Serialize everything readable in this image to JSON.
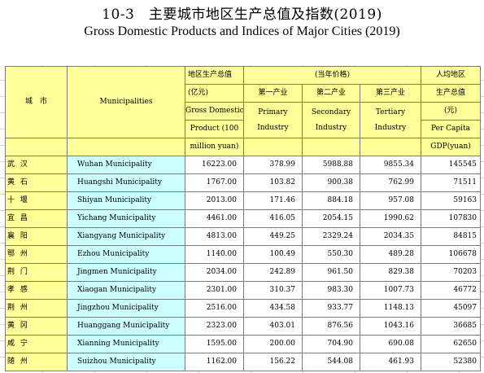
{
  "title": {
    "cn": "10-3　主要城市地区生产总值及指数(2019)",
    "en": "Gross Domestic Products and Indices of Major Cities (2019)"
  },
  "header": {
    "city_cn": "城　市",
    "city_en": "Municipalities",
    "gdp_cn": "地区生产总值",
    "gdp_unit_cn": "(亿元)",
    "gdp_en_1": "Gross Domestic",
    "gdp_en_2": "Product (100",
    "gdp_en_3": "million yuan)",
    "current_prices_cn": "(当年价格)",
    "primary_cn": "第一产业",
    "primary_en_1": "Primary",
    "primary_en_2": "Industry",
    "secondary_cn": "第二产业",
    "secondary_en_1": "Secondary",
    "secondary_en_2": "Industry",
    "tertiary_cn": "第三产业",
    "tertiary_en_1": "Tertiary",
    "tertiary_en_2": "Industry",
    "percap_cn_1": "人均地区",
    "percap_cn_2": "生产总值",
    "percap_unit_cn": "(元)",
    "percap_en_1": "Per Capita",
    "percap_en_2": "GDP(yuan)"
  },
  "rows": [
    {
      "cn": "武 汉",
      "en": "Wuhan Municipality",
      "gdp": "16223.00",
      "primary": "378.99",
      "secondary": "5988.88",
      "tertiary": "9855.34",
      "per_capita": "145545"
    },
    {
      "cn": "黄 石",
      "en": "Huangshi Municipality",
      "gdp": "1767.00",
      "primary": "103.82",
      "secondary": "900.38",
      "tertiary": "762.99",
      "per_capita": "71511"
    },
    {
      "cn": "十 堰",
      "en": "Shiyan Municipality",
      "gdp": "2013.00",
      "primary": "171.46",
      "secondary": "884.18",
      "tertiary": "957.08",
      "per_capita": "59163"
    },
    {
      "cn": "宜 昌",
      "en": "Yichang Municipality",
      "gdp": "4461.00",
      "primary": "416.05",
      "secondary": "2054.15",
      "tertiary": "1990.62",
      "per_capita": "107830"
    },
    {
      "cn": "襄 阳",
      "en": "Xiangyang Municipality",
      "gdp": "4813.00",
      "primary": "449.25",
      "secondary": "2329.24",
      "tertiary": "2034.35",
      "per_capita": "84815"
    },
    {
      "cn": "鄂 州",
      "en": "Ezhou Municipality",
      "gdp": "1140.00",
      "primary": "100.49",
      "secondary": "550.30",
      "tertiary": "489.28",
      "per_capita": "106678"
    },
    {
      "cn": "荆 门",
      "en": "Jingmen Municipality",
      "gdp": "2034.00",
      "primary": "242.89",
      "secondary": "961.50",
      "tertiary": "829.38",
      "per_capita": "70203"
    },
    {
      "cn": "孝 感",
      "en": "Xiaogan Municipality",
      "gdp": "2301.00",
      "primary": "310.37",
      "secondary": "983.30",
      "tertiary": "1007.73",
      "per_capita": "46772"
    },
    {
      "cn": "荆 州",
      "en": "Jingzhou Municipality",
      "gdp": "2516.00",
      "primary": "434.58",
      "secondary": "933.77",
      "tertiary": "1148.13",
      "per_capita": "45097"
    },
    {
      "cn": "黄 冈",
      "en": "Huanggang Municipality",
      "gdp": "2323.00",
      "primary": "403.01",
      "secondary": "876.56",
      "tertiary": "1043.16",
      "per_capita": "36685"
    },
    {
      "cn": "咸 宁",
      "en": "Xianning Municipality",
      "gdp": "1595.00",
      "primary": "200.00",
      "secondary": "704.90",
      "tertiary": "690.08",
      "per_capita": "62650"
    },
    {
      "cn": "随 州",
      "en": "Suizhou Municipality",
      "gdp": "1162.00",
      "primary": "156.22",
      "secondary": "544.08",
      "tertiary": "461.93",
      "per_capita": "52380"
    }
  ]
}
